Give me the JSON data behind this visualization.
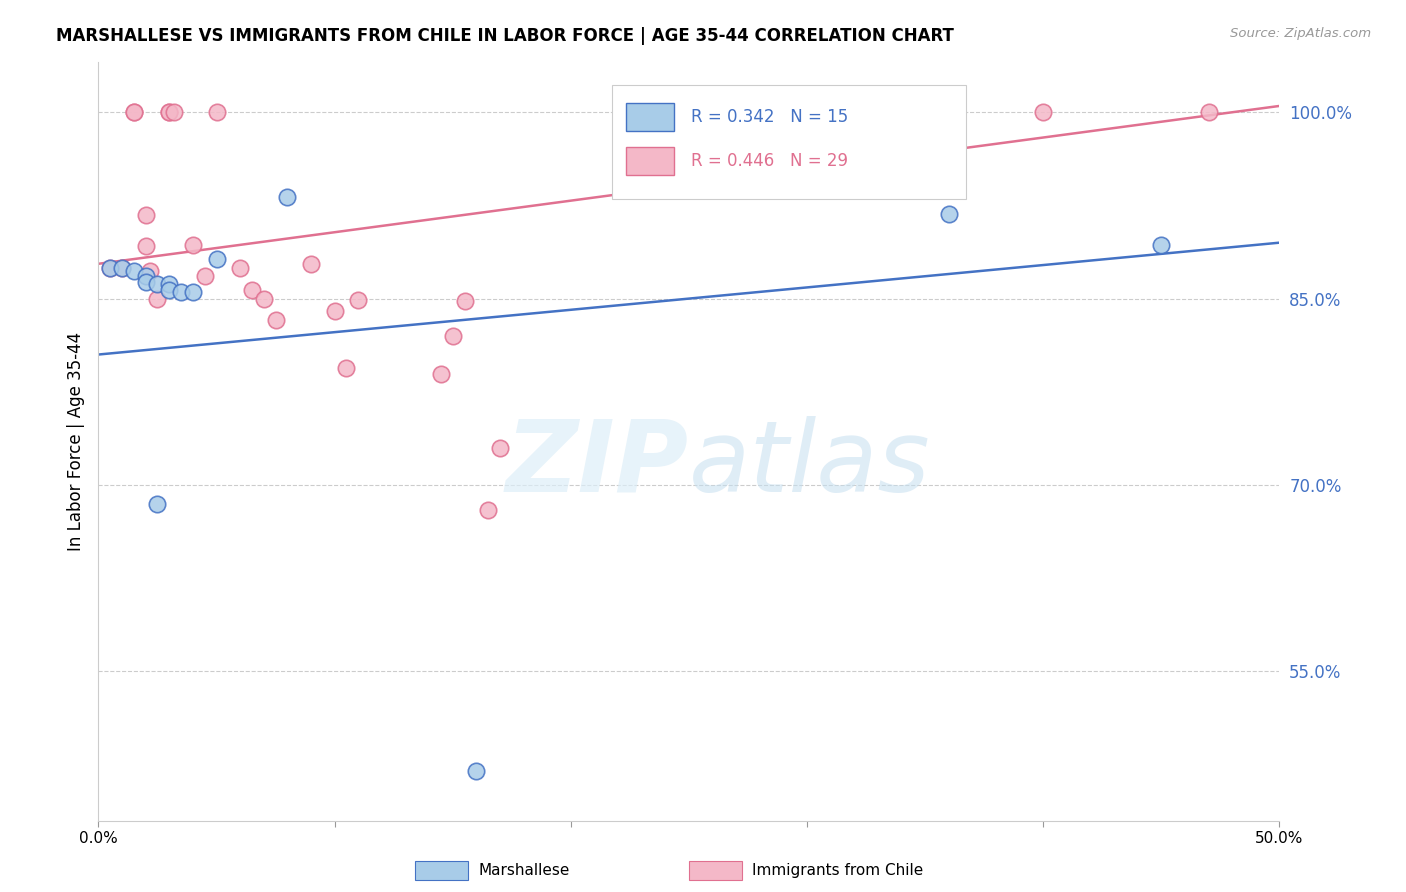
{
  "title": "MARSHALLESE VS IMMIGRANTS FROM CHILE IN LABOR FORCE | AGE 35-44 CORRELATION CHART",
  "source": "Source: ZipAtlas.com",
  "ylabel": "In Labor Force | Age 35-44",
  "blue_label": "Marshallese",
  "pink_label": "Immigrants from Chile",
  "blue_R": 0.342,
  "blue_N": 15,
  "pink_R": 0.446,
  "pink_N": 29,
  "xmin": 0.0,
  "xmax": 0.5,
  "ymin": 0.43,
  "ymax": 1.04,
  "yticks": [
    0.55,
    0.7,
    0.85,
    1.0
  ],
  "ytick_labels": [
    "55.0%",
    "70.0%",
    "85.0%",
    "100.0%"
  ],
  "xticks": [
    0.0,
    0.1,
    0.2,
    0.3,
    0.4,
    0.5
  ],
  "xtick_labels": [
    "0.0%",
    "",
    "",
    "",
    "",
    "50.0%"
  ],
  "blue_color": "#a8cce8",
  "pink_color": "#f4b8c8",
  "blue_line_color": "#4472C4",
  "pink_line_color": "#e07090",
  "axis_color": "#4472C4",
  "blue_scatter_x": [
    0.005,
    0.01,
    0.015,
    0.02,
    0.02,
    0.025,
    0.03,
    0.03,
    0.035,
    0.04,
    0.05,
    0.08,
    0.36,
    0.45,
    0.025
  ],
  "blue_scatter_y": [
    0.875,
    0.875,
    0.872,
    0.868,
    0.863,
    0.862,
    0.862,
    0.857,
    0.855,
    0.855,
    0.882,
    0.932,
    0.918,
    0.893,
    0.685
  ],
  "blue_outlier_x": [
    0.16
  ],
  "blue_outlier_y": [
    0.47
  ],
  "pink_scatter_x": [
    0.005,
    0.01,
    0.015,
    0.015,
    0.02,
    0.02,
    0.022,
    0.025,
    0.03,
    0.03,
    0.032,
    0.04,
    0.045,
    0.05,
    0.06,
    0.065,
    0.07,
    0.075,
    0.09,
    0.1,
    0.105,
    0.11,
    0.145,
    0.15,
    0.155,
    0.165,
    0.17,
    0.4,
    0.47
  ],
  "pink_scatter_y": [
    0.875,
    0.875,
    1.0,
    1.0,
    0.917,
    0.892,
    0.872,
    0.85,
    1.0,
    1.0,
    1.0,
    0.893,
    0.868,
    1.0,
    0.875,
    0.857,
    0.85,
    0.833,
    0.878,
    0.84,
    0.794,
    0.849,
    0.789,
    0.82,
    0.848,
    0.68,
    0.73,
    1.0,
    1.0
  ]
}
